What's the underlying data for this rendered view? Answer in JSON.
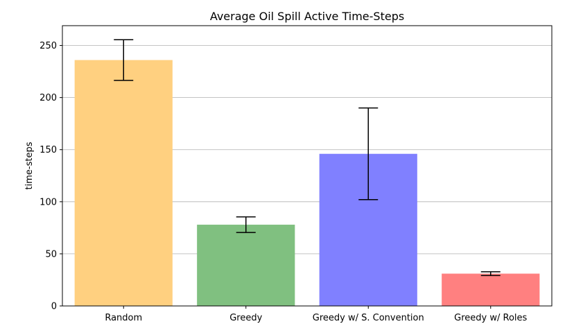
{
  "chart_data": {
    "type": "bar",
    "title": "Average Oil Spill Active Time-Steps",
    "xlabel": "",
    "ylabel": "time-steps",
    "categories": [
      "Random",
      "Greedy",
      "Greedy w/ S. Convention",
      "Greedy w/ Roles"
    ],
    "values": [
      236,
      78,
      146,
      31
    ],
    "errors": [
      19.5,
      7.5,
      44,
      1.8
    ],
    "colors": [
      "#ffd080",
      "#80c080",
      "#8080ff",
      "#ff8080"
    ],
    "ylim": [
      0,
      269
    ],
    "yticks": [
      0,
      50,
      100,
      150,
      200,
      250
    ],
    "grid": "horizontal"
  }
}
